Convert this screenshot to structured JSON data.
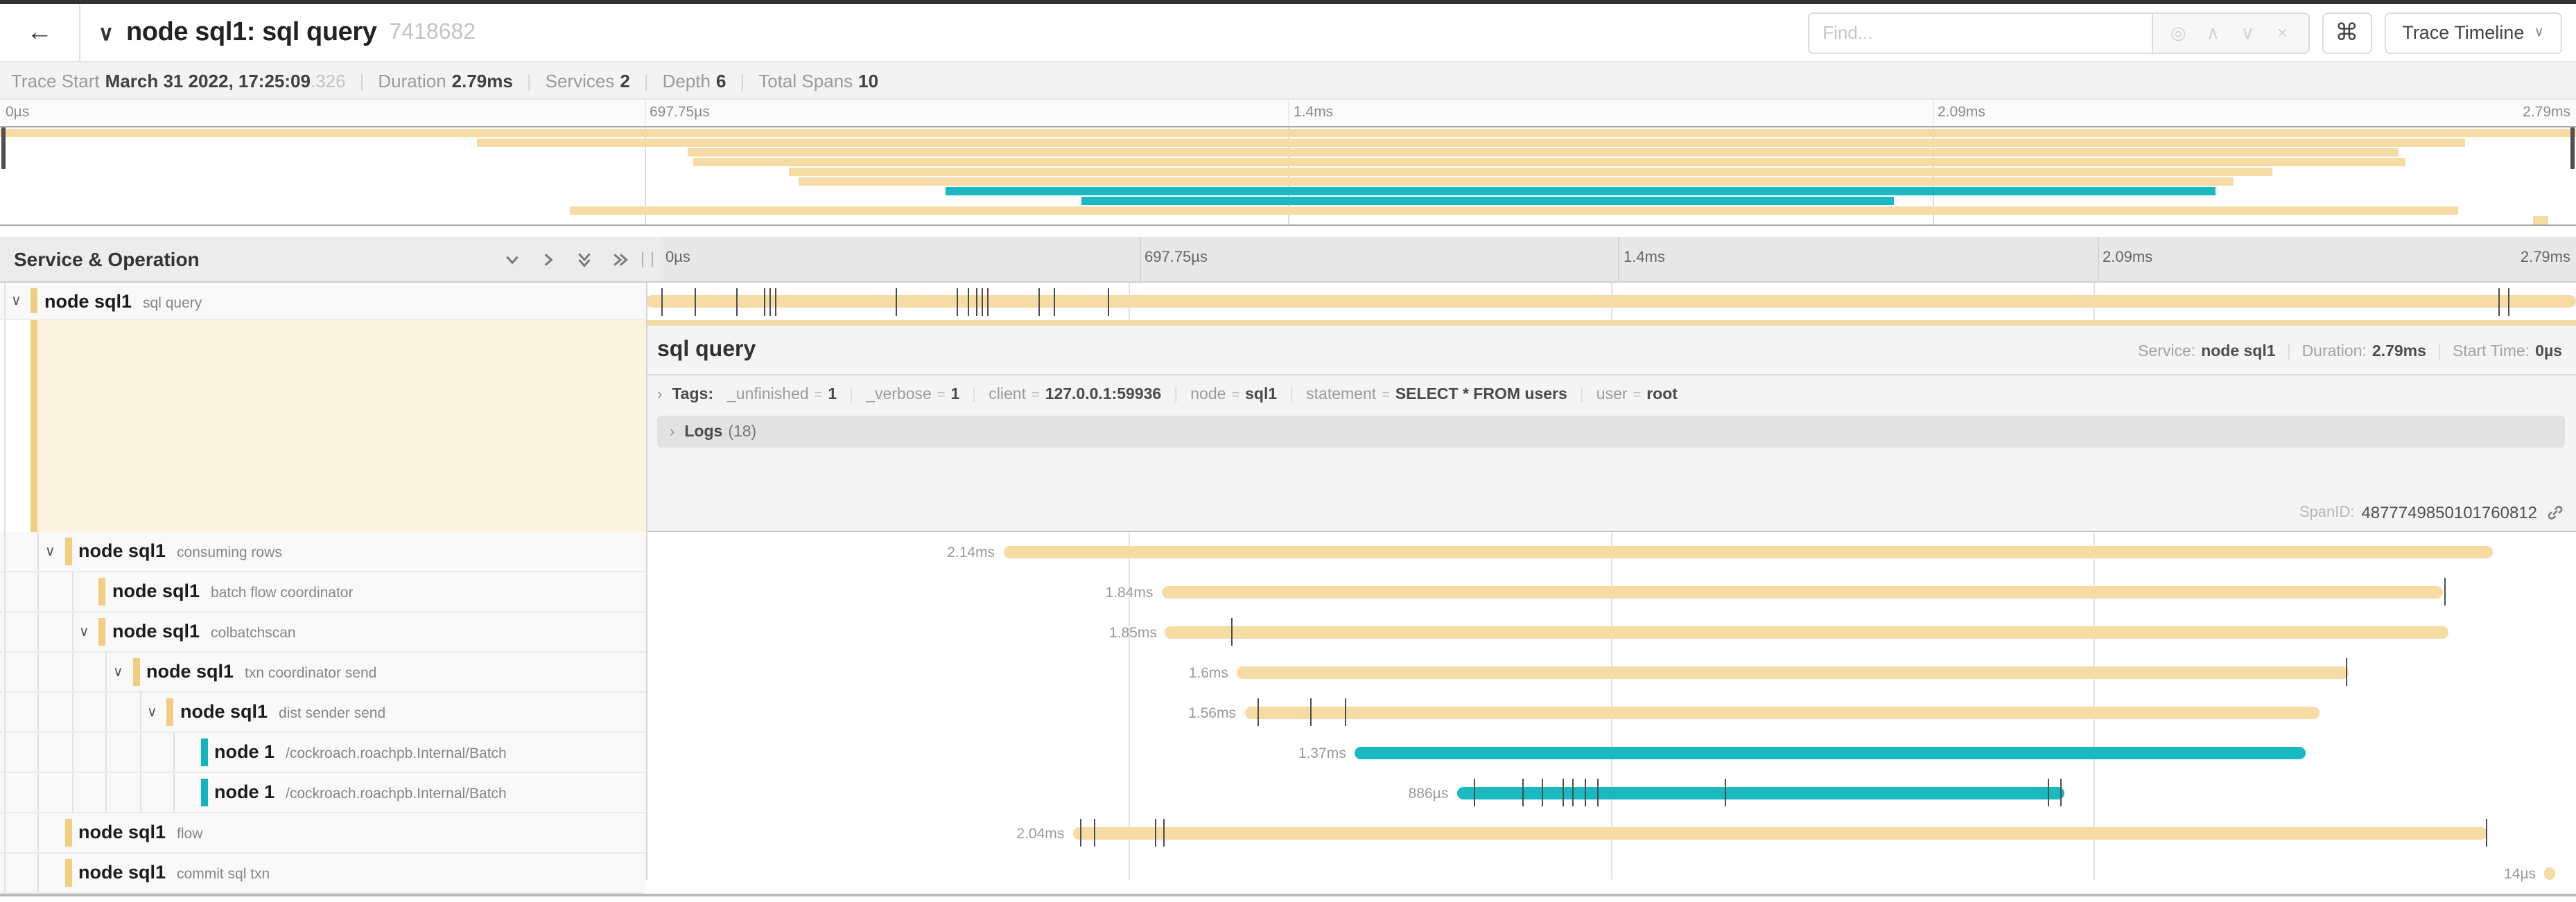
{
  "header": {
    "back_icon": "←",
    "collapse_icon": "∨",
    "title": "node sql1: sql query",
    "trace_id": "7418682",
    "find_placeholder": "Find...",
    "find_icons": [
      "◎",
      "∧",
      "∨",
      "×"
    ],
    "shortcut_icon": "⌘",
    "view_selector_label": "Trace Timeline"
  },
  "trace_meta": {
    "trace_start_label": "Trace Start",
    "trace_start_value": "March 31 2022, 17:25:09",
    "trace_start_fraction": ".326",
    "duration_label": "Duration",
    "duration_value": "2.79ms",
    "services_label": "Services",
    "services_value": "2",
    "depth_label": "Depth",
    "depth_value": "6",
    "total_spans_label": "Total Spans",
    "total_spans_value": "10"
  },
  "ruler": {
    "ticks": [
      "0µs",
      "697.75µs",
      "1.4ms",
      "2.09ms",
      "2.79ms"
    ],
    "positions_pct": [
      0,
      25,
      50,
      75,
      100
    ]
  },
  "left_panel": {
    "header_title": "Service & Operation"
  },
  "span_detail": {
    "title": "sql query",
    "service_label": "Service:",
    "service_value": "node sql1",
    "duration_label": "Duration:",
    "duration_value": "2.79ms",
    "start_time_label": "Start Time:",
    "start_time_value": "0µs",
    "tags_label": "Tags:",
    "tags": [
      {
        "key": "_unfinished",
        "value": "1"
      },
      {
        "key": "_verbose",
        "value": "1"
      },
      {
        "key": "client",
        "value": "127.0.0.1:59936"
      },
      {
        "key": "node",
        "value": "sql1"
      },
      {
        "key": "statement",
        "value": "SELECT * FROM users"
      },
      {
        "key": "user",
        "value": "root"
      }
    ],
    "logs_label": "Logs",
    "logs_count": "(18)",
    "span_id_label": "SpanID:",
    "span_id_value": "4877749850101760812"
  },
  "colors": {
    "tan": "#f6dba4",
    "tan_accent": "#f0cd80",
    "teal": "#1ab9c1",
    "teal_accent": "#10b4bd",
    "tick": "#4d4d4d"
  },
  "spans": [
    {
      "service": "node sql1",
      "operation": "sql query",
      "depth": 0,
      "has_chevron": true,
      "color": "tan",
      "start_pct": 0,
      "end_pct": 100,
      "duration_label": "",
      "ticks": [
        0.8,
        2.5,
        4.7,
        6.1,
        6.4,
        6.7,
        12.9,
        16.1,
        16.7,
        17.1,
        17.4,
        17.7,
        20.3,
        21.1,
        23.9,
        96.0,
        96.5
      ]
    },
    {
      "service": "node sql1",
      "operation": "consuming rows",
      "depth": 1,
      "has_chevron": true,
      "color": "tan",
      "start_pct": 18.5,
      "end_pct": 95.7,
      "duration_label": "2.14ms",
      "ticks": []
    },
    {
      "service": "node sql1",
      "operation": "batch flow coordinator",
      "depth": 2,
      "has_chevron": false,
      "color": "tan",
      "start_pct": 26.7,
      "end_pct": 93.1,
      "duration_label": "1.84ms",
      "ticks": [
        93.2
      ]
    },
    {
      "service": "node sql1",
      "operation": "colbatchscan",
      "depth": 2,
      "has_chevron": true,
      "color": "tan",
      "start_pct": 26.9,
      "end_pct": 93.4,
      "duration_label": "1.85ms",
      "ticks": [
        30.3
      ]
    },
    {
      "service": "node sql1",
      "operation": "txn coordinator send",
      "depth": 3,
      "has_chevron": true,
      "color": "tan",
      "start_pct": 30.6,
      "end_pct": 88.2,
      "duration_label": "1.6ms",
      "ticks": [
        88.1
      ]
    },
    {
      "service": "node sql1",
      "operation": "dist sender send",
      "depth": 4,
      "has_chevron": true,
      "color": "tan",
      "start_pct": 31.0,
      "end_pct": 86.7,
      "duration_label": "1.56ms",
      "ticks": [
        31.7,
        34.4,
        36.2
      ]
    },
    {
      "service": "node 1",
      "operation": "/cockroach.roachpb.Internal/Batch",
      "depth": 5,
      "has_chevron": false,
      "color": "teal",
      "start_pct": 36.7,
      "end_pct": 86.0,
      "duration_label": "1.37ms",
      "ticks": []
    },
    {
      "service": "node 1",
      "operation": "/cockroach.roachpb.Internal/Batch",
      "depth": 5,
      "has_chevron": false,
      "color": "teal",
      "start_pct": 42.0,
      "end_pct": 73.5,
      "duration_label": "886µs",
      "ticks": [
        42.9,
        45.4,
        46.4,
        47.5,
        48.0,
        48.6,
        49.3,
        55.9,
        72.6,
        73.3
      ]
    },
    {
      "service": "node sql1",
      "operation": "flow",
      "depth": 1,
      "has_chevron": false,
      "color": "tan",
      "start_pct": 22.1,
      "end_pct": 95.4,
      "duration_label": "2.04ms",
      "ticks": [
        22.5,
        23.2,
        26.4,
        26.8,
        95.3
      ]
    },
    {
      "service": "node sql1",
      "operation": "commit sql txn",
      "depth": 1,
      "has_chevron": false,
      "color": "tan",
      "start_pct": 98.35,
      "end_pct": 98.95,
      "duration_label": "14µs",
      "ticks": []
    }
  ]
}
